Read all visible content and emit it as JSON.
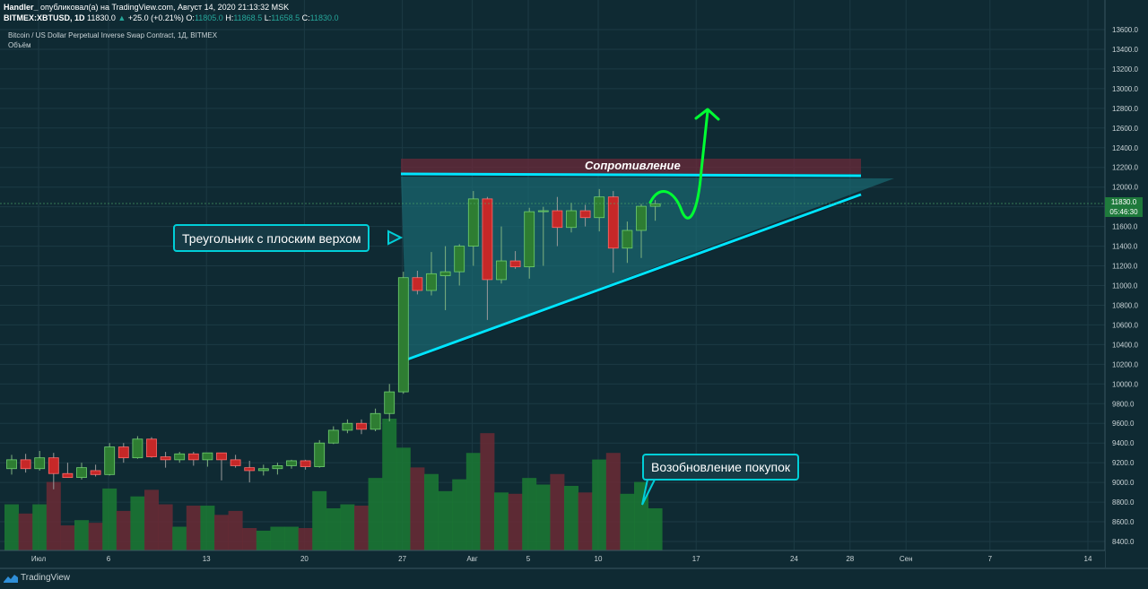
{
  "header": {
    "author": "Handler_",
    "published_text": "опубликовал(а) на TradingView.com, Август 14, 2020 21:13:32 MSK",
    "symbol": "BITMEX:XBTUSD, 1D",
    "last": "11830.0",
    "change": "+25.0 (+0.21%)",
    "o_label": "O:",
    "o_value": "11805.0",
    "h_label": "H:",
    "h_value": "11868.5",
    "l_label": "L:",
    "l_value": "11658.5",
    "c_label": "C:",
    "c_value": "11830.0"
  },
  "legend": {
    "title": "Bitcoin / US Dollar Perpetual Inverse Swap Contract, 1Д, BITMEX",
    "volume": "Объём"
  },
  "annotations": {
    "triangle": "Треугольник с плоским верхом",
    "resistance": "Сопротивление",
    "resume": "Возобновление покупок"
  },
  "price_tag": {
    "price": "11830.0",
    "countdown": "05:46:30"
  },
  "brand": "TradingView",
  "colors": {
    "background": "#0f2a33",
    "up": "#26a69a",
    "up_fill": "#2e7d32",
    "down": "#c62828",
    "cyan": "#00e5ff",
    "green_arrow": "#00ff33"
  },
  "chart_data": {
    "type": "candlestick",
    "y_ticks": [
      "13600.0",
      "13400.0",
      "13200.0",
      "13000.0",
      "12800.0",
      "12600.0",
      "12400.0",
      "12200.0",
      "12000.0",
      "11800.0",
      "11600.0",
      "11400.0",
      "11200.0",
      "11000.0",
      "10800.0",
      "10600.0",
      "10400.0",
      "10200.0",
      "10000.0",
      "9800.0",
      "9600.0",
      "9400.0",
      "9200.0",
      "9000.0",
      "8800.0",
      "8600.0",
      "8400.0"
    ],
    "x_ticks": [
      {
        "label": "Июл",
        "day": 0
      },
      {
        "label": "6",
        "day": 5
      },
      {
        "label": "13",
        "day": 12
      },
      {
        "label": "20",
        "day": 19
      },
      {
        "label": "27",
        "day": 26
      },
      {
        "label": "Авг",
        "day": 31
      },
      {
        "label": "5",
        "day": 35
      },
      {
        "label": "10",
        "day": 40
      },
      {
        "label": "17",
        "day": 47
      },
      {
        "label": "24",
        "day": 54
      },
      {
        "label": "28",
        "day": 58
      },
      {
        "label": "Сен",
        "day": 62
      },
      {
        "label": "7",
        "day": 68
      },
      {
        "label": "14",
        "day": 75
      }
    ],
    "candles": [
      {
        "o": 9140,
        "h": 9280,
        "l": 9080,
        "c": 9230,
        "v": 0.35
      },
      {
        "o": 9230,
        "h": 9290,
        "l": 9100,
        "c": 9140,
        "v": 0.28
      },
      {
        "o": 9140,
        "h": 9320,
        "l": 9120,
        "c": 9250,
        "v": 0.35
      },
      {
        "o": 9250,
        "h": 9300,
        "l": 8930,
        "c": 9090,
        "v": 0.52
      },
      {
        "o": 9090,
        "h": 9200,
        "l": 9050,
        "c": 9050,
        "v": 0.19
      },
      {
        "o": 9050,
        "h": 9200,
        "l": 9030,
        "c": 9150,
        "v": 0.23
      },
      {
        "o": 9120,
        "h": 9180,
        "l": 9060,
        "c": 9080,
        "v": 0.21
      },
      {
        "o": 9080,
        "h": 9400,
        "l": 9070,
        "c": 9360,
        "v": 0.47
      },
      {
        "o": 9360,
        "h": 9400,
        "l": 9200,
        "c": 9250,
        "v": 0.3
      },
      {
        "o": 9250,
        "h": 9470,
        "l": 9240,
        "c": 9440,
        "v": 0.41
      },
      {
        "o": 9440,
        "h": 9460,
        "l": 9250,
        "c": 9260,
        "v": 0.46
      },
      {
        "o": 9260,
        "h": 9310,
        "l": 9150,
        "c": 9230,
        "v": 0.35
      },
      {
        "o": 9230,
        "h": 9310,
        "l": 9200,
        "c": 9290,
        "v": 0.18
      },
      {
        "o": 9290,
        "h": 9310,
        "l": 9170,
        "c": 9230,
        "v": 0.34
      },
      {
        "o": 9230,
        "h": 9300,
        "l": 9160,
        "c": 9300,
        "v": 0.34
      },
      {
        "o": 9300,
        "h": 9300,
        "l": 9020,
        "c": 9230,
        "v": 0.27
      },
      {
        "o": 9230,
        "h": 9280,
        "l": 9150,
        "c": 9170,
        "v": 0.3
      },
      {
        "o": 9150,
        "h": 9220,
        "l": 9000,
        "c": 9120,
        "v": 0.17
      },
      {
        "o": 9120,
        "h": 9180,
        "l": 9070,
        "c": 9140,
        "v": 0.15
      },
      {
        "o": 9140,
        "h": 9200,
        "l": 9080,
        "c": 9170,
        "v": 0.18
      },
      {
        "o": 9170,
        "h": 9230,
        "l": 9140,
        "c": 9220,
        "v": 0.18
      },
      {
        "o": 9220,
        "h": 9230,
        "l": 9130,
        "c": 9160,
        "v": 0.17
      },
      {
        "o": 9160,
        "h": 9430,
        "l": 9150,
        "c": 9400,
        "v": 0.45
      },
      {
        "o": 9400,
        "h": 9570,
        "l": 9390,
        "c": 9530,
        "v": 0.32
      },
      {
        "o": 9530,
        "h": 9640,
        "l": 9500,
        "c": 9600,
        "v": 0.35
      },
      {
        "o": 9600,
        "h": 9640,
        "l": 9490,
        "c": 9540,
        "v": 0.34
      },
      {
        "o": 9540,
        "h": 9750,
        "l": 9520,
        "c": 9700,
        "v": 0.55
      },
      {
        "o": 9700,
        "h": 10000,
        "l": 9620,
        "c": 9920,
        "v": 1.0
      },
      {
        "o": 9920,
        "h": 11140,
        "l": 9900,
        "c": 11080,
        "v": 0.78
      },
      {
        "o": 11080,
        "h": 11150,
        "l": 10910,
        "c": 10950,
        "v": 0.63
      },
      {
        "o": 10950,
        "h": 11340,
        "l": 10900,
        "c": 11120,
        "v": 0.58
      },
      {
        "o": 11100,
        "h": 11400,
        "l": 10750,
        "c": 11140,
        "v": 0.45
      },
      {
        "o": 11140,
        "h": 11420,
        "l": 11000,
        "c": 11400,
        "v": 0.54
      },
      {
        "o": 11400,
        "h": 11960,
        "l": 11200,
        "c": 11880,
        "v": 0.74
      },
      {
        "o": 11880,
        "h": 11900,
        "l": 10650,
        "c": 11060,
        "v": 0.89
      },
      {
        "o": 11060,
        "h": 11600,
        "l": 11020,
        "c": 11250,
        "v": 0.44
      },
      {
        "o": 11250,
        "h": 11350,
        "l": 11170,
        "c": 11190,
        "v": 0.43
      },
      {
        "o": 11190,
        "h": 11790,
        "l": 11070,
        "c": 11750,
        "v": 0.55
      },
      {
        "o": 11750,
        "h": 11800,
        "l": 11200,
        "c": 11760,
        "v": 0.5
      },
      {
        "o": 11760,
        "h": 11900,
        "l": 11400,
        "c": 11590,
        "v": 0.58
      },
      {
        "o": 11590,
        "h": 11840,
        "l": 11540,
        "c": 11760,
        "v": 0.49
      },
      {
        "o": 11760,
        "h": 11820,
        "l": 11600,
        "c": 11690,
        "v": 0.44
      },
      {
        "o": 11690,
        "h": 11980,
        "l": 11550,
        "c": 11900,
        "v": 0.69
      },
      {
        "o": 11900,
        "h": 11960,
        "l": 11130,
        "c": 11380,
        "v": 0.74
      },
      {
        "o": 11380,
        "h": 11650,
        "l": 11230,
        "c": 11560,
        "v": 0.43
      },
      {
        "o": 11560,
        "h": 11830,
        "l": 11280,
        "c": 11805,
        "v": 0.52
      },
      {
        "o": 11805,
        "h": 11868,
        "l": 11658,
        "c": 11830,
        "v": 0.32
      }
    ]
  }
}
